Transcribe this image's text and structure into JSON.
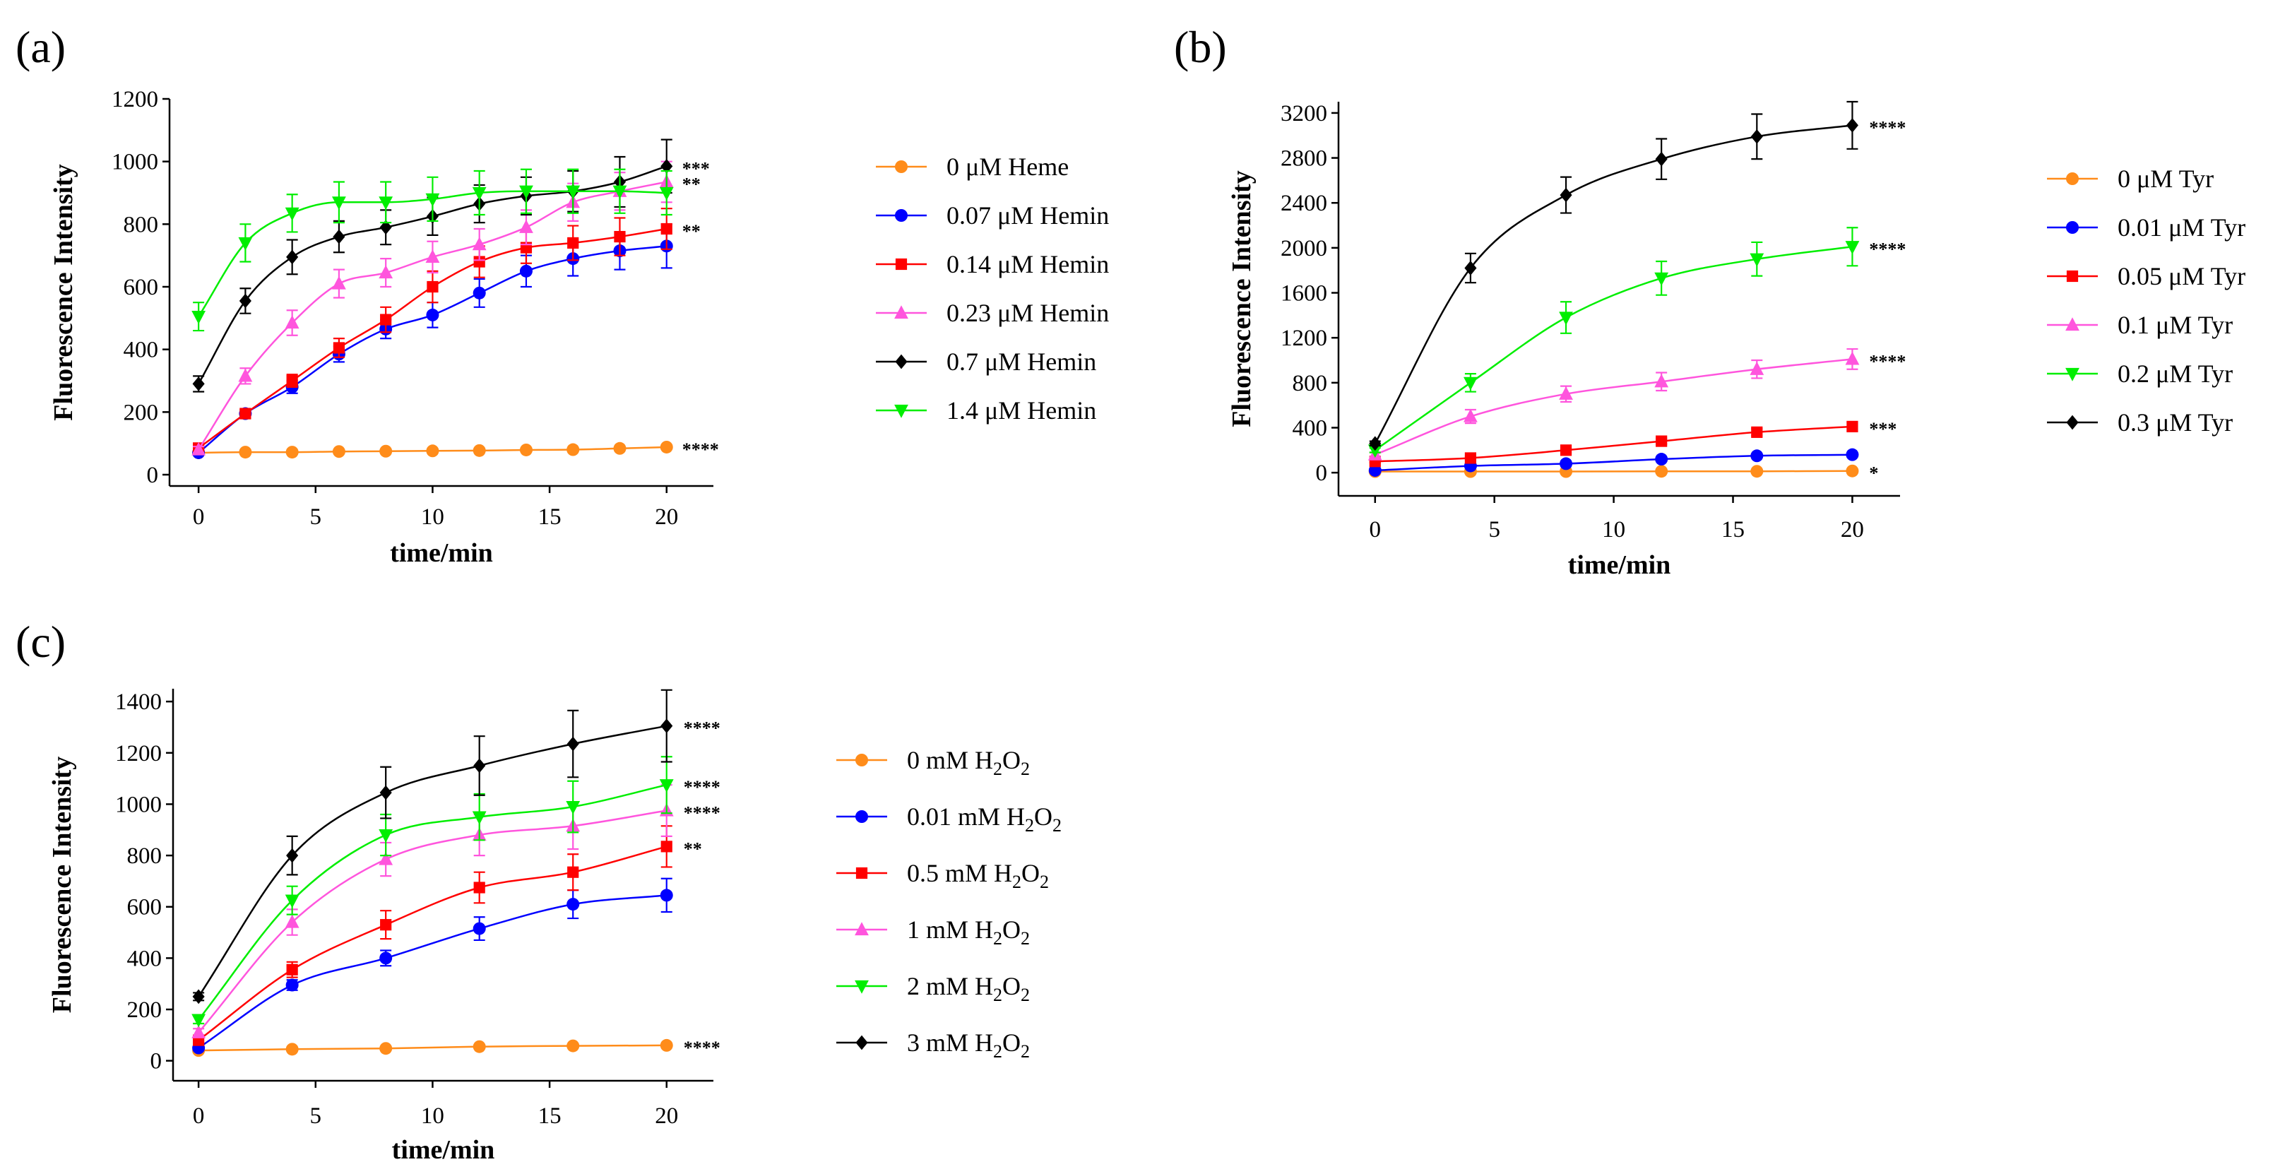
{
  "chart_data": [
    {
      "type": "line",
      "panel_label": "(a)",
      "xlabel": "time/min",
      "ylabel": "Fluorescence Intensity",
      "xlim": [
        -1,
        22
      ],
      "ylim": [
        0,
        1200
      ],
      "xticks": [
        0,
        5,
        10,
        15,
        20
      ],
      "yticks": [
        0,
        200,
        400,
        600,
        800,
        1000,
        1200
      ],
      "grid": false,
      "legend_position": "right",
      "x": [
        0,
        2,
        4,
        6,
        8,
        10,
        12,
        14,
        16,
        18,
        20
      ],
      "series": [
        {
          "name": "0 μM Heme",
          "color": "#ff8c1a",
          "marker": "circle",
          "values": [
            70,
            72,
            72,
            74,
            75,
            76,
            77,
            79,
            80,
            84,
            88
          ],
          "errors": [
            6,
            5,
            5,
            5,
            5,
            5,
            5,
            5,
            5,
            6,
            6
          ],
          "significance": "****"
        },
        {
          "name": "0.07 μM Hemin",
          "color": "#0000ff",
          "marker": "circle",
          "values": [
            70,
            195,
            280,
            385,
            465,
            510,
            580,
            650,
            690,
            715,
            730
          ],
          "errors": [
            8,
            12,
            20,
            25,
            30,
            40,
            45,
            50,
            55,
            60,
            70
          ],
          "significance": ""
        },
        {
          "name": "0.14 μM Hemin",
          "color": "#ff0000",
          "marker": "square",
          "values": [
            85,
            195,
            300,
            405,
            495,
            600,
            680,
            725,
            740,
            760,
            785
          ],
          "errors": [
            8,
            12,
            20,
            30,
            40,
            50,
            50,
            50,
            55,
            60,
            65
          ],
          "significance": "**"
        },
        {
          "name": "0.23 μM Hemin",
          "color": "#ff55dd",
          "marker": "triangle-up",
          "values": [
            80,
            315,
            485,
            610,
            645,
            695,
            735,
            790,
            870,
            905,
            935
          ],
          "errors": [
            10,
            25,
            40,
            45,
            45,
            50,
            50,
            55,
            60,
            60,
            65
          ],
          "significance": "**"
        },
        {
          "name": "0.7 μM Hemin",
          "color": "#000000",
          "marker": "diamond",
          "values": [
            290,
            555,
            695,
            760,
            790,
            825,
            865,
            890,
            905,
            935,
            985
          ],
          "errors": [
            25,
            40,
            55,
            50,
            55,
            60,
            60,
            60,
            65,
            80,
            85
          ],
          "significance": "***"
        },
        {
          "name": "1.4 μM Hemin",
          "color": "#00ee00",
          "marker": "triangle-down",
          "values": [
            505,
            740,
            835,
            870,
            870,
            880,
            900,
            905,
            905,
            905,
            900
          ],
          "errors": [
            45,
            60,
            60,
            65,
            65,
            70,
            70,
            70,
            70,
            70,
            70
          ],
          "significance": ""
        }
      ]
    },
    {
      "type": "line",
      "panel_label": "(b)",
      "xlabel": "time/min",
      "ylabel": "Fluorescence Intensity",
      "xlim": [
        -1,
        22
      ],
      "ylim": [
        -150,
        3300
      ],
      "xticks": [
        0,
        5,
        10,
        15,
        20
      ],
      "yticks": [
        0,
        400,
        800,
        1200,
        1600,
        2000,
        2400,
        2800,
        3200
      ],
      "grid": false,
      "legend_position": "right",
      "x": [
        0,
        4,
        8,
        12,
        16,
        20
      ],
      "series": [
        {
          "name": "0 μM Tyr",
          "color": "#ff8c1a",
          "marker": "circle",
          "values": [
            10,
            10,
            10,
            12,
            12,
            15
          ],
          "errors": [
            5,
            5,
            5,
            5,
            5,
            5
          ],
          "significance": "*"
        },
        {
          "name": "0.01 μM Tyr",
          "color": "#0000ff",
          "marker": "circle",
          "values": [
            20,
            60,
            80,
            120,
            150,
            160
          ],
          "errors": [
            8,
            10,
            12,
            15,
            15,
            18
          ],
          "significance": ""
        },
        {
          "name": "0.05 μM Tyr",
          "color": "#ff0000",
          "marker": "square",
          "values": [
            100,
            130,
            200,
            280,
            360,
            410
          ],
          "errors": [
            10,
            15,
            20,
            25,
            30,
            35
          ],
          "significance": "***"
        },
        {
          "name": "0.1 μM Tyr",
          "color": "#ff55dd",
          "marker": "triangle-up",
          "values": [
            160,
            500,
            700,
            810,
            920,
            1010
          ],
          "errors": [
            20,
            60,
            70,
            80,
            80,
            90
          ],
          "significance": "****"
        },
        {
          "name": "0.2 μM Tyr",
          "color": "#00ee00",
          "marker": "triangle-down",
          "values": [
            200,
            800,
            1380,
            1730,
            1900,
            2010
          ],
          "errors": [
            20,
            80,
            140,
            150,
            150,
            170
          ],
          "significance": "****"
        },
        {
          "name": "0.3 μM Tyr",
          "color": "#000000",
          "marker": "diamond",
          "values": [
            260,
            1820,
            2470,
            2790,
            2990,
            3090
          ],
          "errors": [
            20,
            130,
            160,
            180,
            200,
            210
          ],
          "significance": "****"
        }
      ]
    },
    {
      "type": "line",
      "panel_label": "(c)",
      "xlabel": "time/min",
      "ylabel": "Fluorescence Intensity",
      "xlim": [
        -1,
        22
      ],
      "ylim": [
        -100,
        1450
      ],
      "xticks": [
        0,
        5,
        10,
        15,
        20
      ],
      "yticks": [
        0,
        200,
        400,
        600,
        800,
        1000,
        1200,
        1400
      ],
      "grid": false,
      "legend_position": "right",
      "x": [
        0,
        4,
        8,
        12,
        16,
        20
      ],
      "series": [
        {
          "name": "0 mM H2O2",
          "label_prefix": "0 mM H",
          "label_sub": "2",
          "label_mid": "O",
          "label_sub2": "2",
          "color": "#ff8c1a",
          "marker": "circle",
          "values": [
            40,
            45,
            48,
            55,
            58,
            60
          ],
          "errors": [
            5,
            5,
            5,
            5,
            5,
            5
          ],
          "significance": "****"
        },
        {
          "name": "0.01 mM H2O2",
          "label_prefix": "0.01 mM H",
          "label_sub": "2",
          "label_mid": "O",
          "label_sub2": "2",
          "color": "#0000ff",
          "marker": "circle",
          "values": [
            50,
            295,
            400,
            515,
            610,
            645
          ],
          "errors": [
            10,
            20,
            30,
            45,
            55,
            65
          ],
          "significance": ""
        },
        {
          "name": "0.5 mM H2O2",
          "label_prefix": "0.5 mM H",
          "label_sub": "2",
          "label_mid": "O",
          "label_sub2": "2",
          "color": "#ff0000",
          "marker": "square",
          "values": [
            80,
            355,
            530,
            675,
            735,
            835
          ],
          "errors": [
            10,
            30,
            55,
            60,
            70,
            80
          ],
          "significance": "**"
        },
        {
          "name": "1 mM H2O2",
          "label_prefix": "1 mM H",
          "label_sub": "2",
          "label_mid": "O",
          "label_sub2": "2",
          "color": "#ff55dd",
          "marker": "triangle-up",
          "values": [
            110,
            540,
            785,
            880,
            915,
            975
          ],
          "errors": [
            15,
            50,
            65,
            80,
            90,
            100
          ],
          "significance": "****"
        },
        {
          "name": "2 mM H2O2",
          "label_prefix": "2 mM H",
          "label_sub": "2",
          "label_mid": "O",
          "label_sub2": "2",
          "color": "#00ee00",
          "marker": "triangle-down",
          "values": [
            160,
            625,
            880,
            950,
            990,
            1075
          ],
          "errors": [
            15,
            55,
            80,
            90,
            100,
            110
          ],
          "significance": "****"
        },
        {
          "name": "3 mM H2O2",
          "label_prefix": "3 mM H",
          "label_sub": "2",
          "label_mid": "O",
          "label_sub2": "2",
          "color": "#000000",
          "marker": "diamond",
          "values": [
            250,
            800,
            1045,
            1150,
            1235,
            1305
          ],
          "errors": [
            15,
            75,
            100,
            115,
            130,
            140
          ],
          "significance": "****"
        }
      ]
    }
  ]
}
